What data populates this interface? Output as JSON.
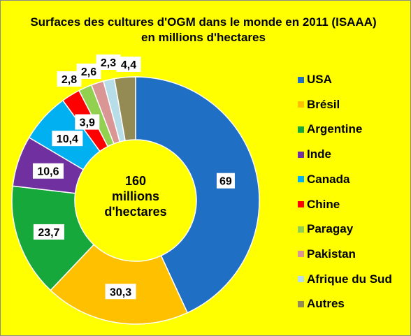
{
  "chart_data": {
    "type": "donut",
    "title": "Surfaces des cultures d'OGM dans le monde en 2011 (ISAAA) en millions d'hectares",
    "center_label": [
      "160",
      "millions",
      "d'hectares"
    ],
    "categories": [
      "USA",
      "Brésil",
      "Argentine",
      "Inde",
      "Canada",
      "Chine",
      "Paragay",
      "Pakistan",
      "Afrique du Sud",
      "Autres"
    ],
    "values": [
      69,
      30.3,
      23.7,
      10.6,
      10.4,
      3.9,
      2.8,
      2.6,
      2.3,
      4.4
    ],
    "value_labels": [
      "69",
      "30,3",
      "23,7",
      "10,6",
      "10,4",
      "3,9",
      "2,8",
      "2,6",
      "2,3",
      "4,4"
    ],
    "colors": [
      "#1f6fc5",
      "#ffc000",
      "#16a83a",
      "#7030a0",
      "#00b0f0",
      "#ff0000",
      "#92d050",
      "#d99694",
      "#b7dee8",
      "#948a54"
    ],
    "legend_position": "right",
    "background": "#ffff00"
  }
}
